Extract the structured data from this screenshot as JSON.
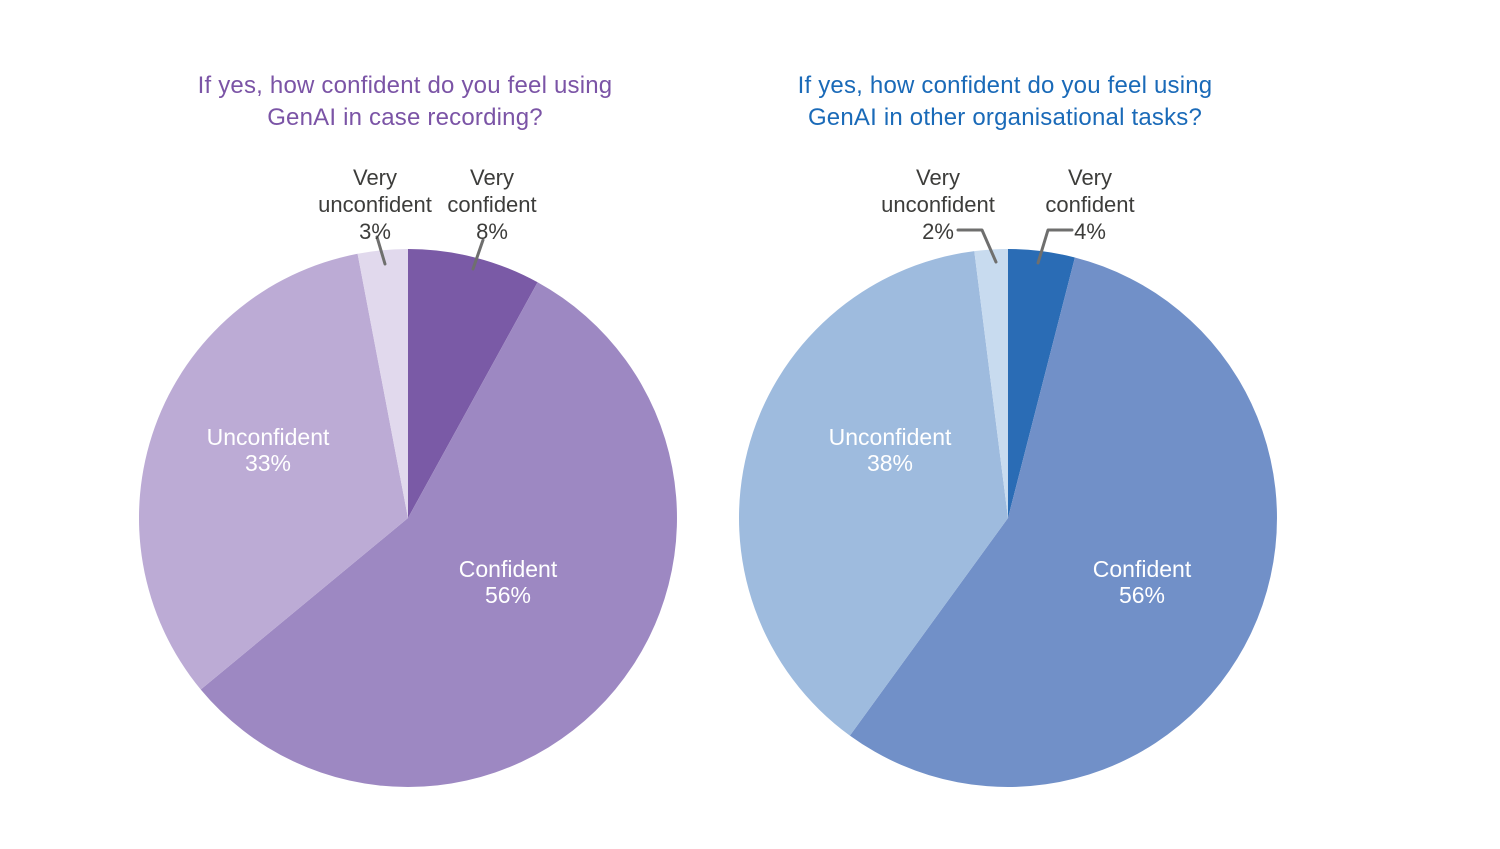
{
  "page": {
    "background_color": "#FFFFFF"
  },
  "chart_data": [
    {
      "type": "pie",
      "title": "If yes, how confident do you feel using GenAI in case recording?",
      "title_lines": [
        "If yes, how confident do you feel using",
        "GenAI in case recording?"
      ],
      "title_color": "#7B54A6",
      "label_text_color": "#3D3D3B",
      "inside_label_color": "#FFFFFF",
      "leader_line_color": "#6F6F6E",
      "legend_position": "none",
      "start_angle_deg": 0,
      "direction": "clockwise",
      "slices": [
        {
          "label": "Very confident",
          "label_lines": [
            "Very",
            "confident"
          ],
          "pct": 8,
          "pct_label": "8%",
          "color": "#7A5AA6",
          "label_style": "callout"
        },
        {
          "label": "Confident",
          "label_lines": [
            "Confident"
          ],
          "pct": 56,
          "pct_label": "56%",
          "color": "#9D88C2",
          "label_style": "inside"
        },
        {
          "label": "Unconfident",
          "label_lines": [
            "Unconfident"
          ],
          "pct": 33,
          "pct_label": "33%",
          "color": "#BCABD5",
          "label_style": "inside"
        },
        {
          "label": "Very unconfident",
          "label_lines": [
            "Very",
            "unconfident"
          ],
          "pct": 3,
          "pct_label": "3%",
          "color": "#E1D9ED",
          "label_style": "callout"
        }
      ]
    },
    {
      "type": "pie",
      "title": "If yes, how confident do you feel using GenAI in other organisational tasks?",
      "title_lines": [
        "If yes, how confident do you feel using",
        "GenAI in other organisational tasks?"
      ],
      "title_color": "#1A6AB8",
      "label_text_color": "#3D3D3B",
      "inside_label_color": "#FFFFFF",
      "leader_line_color": "#6F6F6E",
      "legend_position": "none",
      "start_angle_deg": 0,
      "direction": "clockwise",
      "slices": [
        {
          "label": "Very confident",
          "label_lines": [
            "Very",
            "confident"
          ],
          "pct": 4,
          "pct_label": "4%",
          "color": "#2A6CB5",
          "label_style": "callout"
        },
        {
          "label": "Confident",
          "label_lines": [
            "Confident"
          ],
          "pct": 56,
          "pct_label": "56%",
          "color": "#7190C8",
          "label_style": "inside"
        },
        {
          "label": "Unconfident",
          "label_lines": [
            "Unconfident"
          ],
          "pct": 38,
          "pct_label": "38%",
          "color": "#9EBBDE",
          "label_style": "inside"
        },
        {
          "label": "Very unconfident",
          "label_lines": [
            "Very",
            "unconfident"
          ],
          "pct": 2,
          "pct_label": "2%",
          "color": "#C8DBEF",
          "label_style": "callout"
        }
      ]
    }
  ]
}
